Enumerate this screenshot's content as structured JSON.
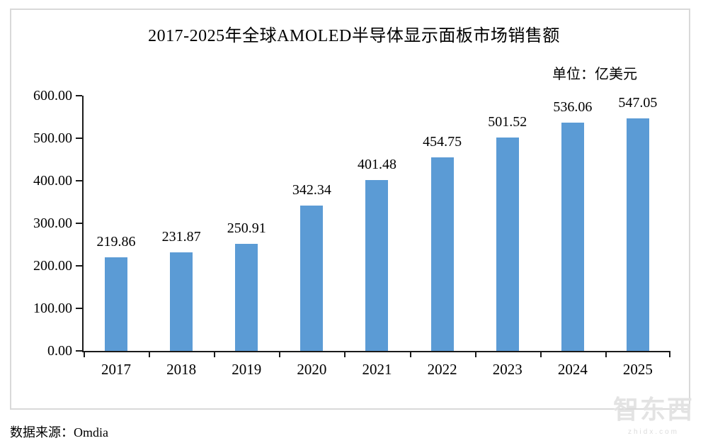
{
  "chart_data": {
    "type": "bar",
    "title": "2017-2025年全球AMOLED半导体显示面板市场销售额",
    "unit_label": "单位：亿美元",
    "categories": [
      "2017",
      "2018",
      "2019",
      "2020",
      "2021",
      "2022",
      "2023",
      "2024",
      "2025"
    ],
    "values": [
      219.86,
      231.87,
      250.91,
      342.34,
      401.48,
      454.75,
      501.52,
      536.06,
      547.05
    ],
    "value_labels": [
      "219.86",
      "231.87",
      "250.91",
      "342.34",
      "401.48",
      "454.75",
      "501.52",
      "536.06",
      "547.05"
    ],
    "ylim": [
      0,
      600
    ],
    "ytick_step": 100,
    "ytick_labels": [
      "0.00",
      "100.00",
      "200.00",
      "300.00",
      "400.00",
      "500.00",
      "600.00"
    ],
    "bar_color": "#5B9BD5",
    "axis_color": "#1a1a1a",
    "grid": false,
    "legend_position": "none"
  },
  "source": {
    "label": "数据来源：Omdia"
  },
  "watermark": {
    "text": "智东西",
    "subtext": "zhidx.com"
  }
}
